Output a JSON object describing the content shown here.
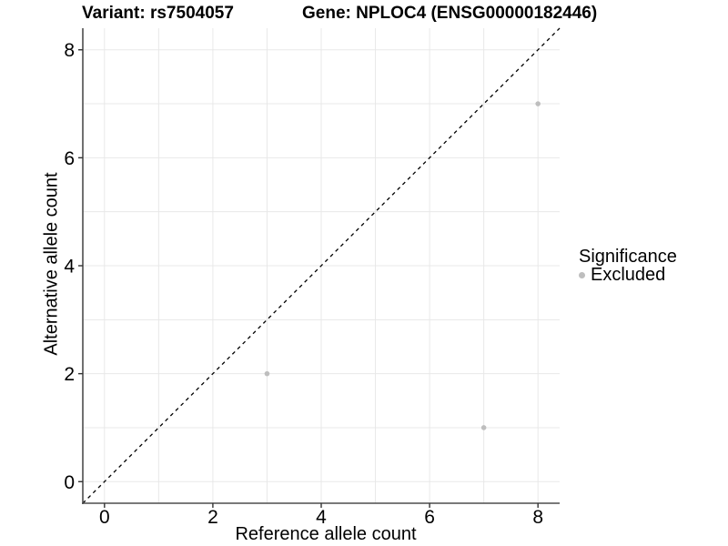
{
  "chart_data": {
    "type": "scatter",
    "titles": {
      "variant": "Variant: rs7504057",
      "gene": "Gene: NPLOC4 (ENSG00000182446)"
    },
    "xlabel": "Reference allele count",
    "ylabel": "Alternative allele count",
    "xlim": [
      -0.4,
      8.4
    ],
    "ylim": [
      -0.4,
      8.4
    ],
    "x_ticks": [
      0,
      2,
      4,
      6,
      8
    ],
    "y_ticks": [
      0,
      2,
      4,
      6,
      8
    ],
    "grid": true,
    "grid_interval": 1,
    "identity_line": {
      "style": "dashed",
      "color": "#000000",
      "from": [
        -0.4,
        -0.4
      ],
      "to": [
        8.4,
        8.4
      ]
    },
    "series": [
      {
        "name": "Excluded",
        "color": "#bebebe",
        "points": [
          [
            3,
            2
          ],
          [
            7,
            1
          ],
          [
            8,
            7
          ]
        ]
      }
    ],
    "legend": {
      "position": "right",
      "title": "Significance",
      "entries": [
        {
          "label": "Excluded",
          "color": "#bebebe"
        }
      ]
    }
  },
  "colors": {
    "background": "#ffffff",
    "grid": "#e8e8e8",
    "axis": "#4d4d4d",
    "tick": "#333333",
    "text": "#000000"
  }
}
